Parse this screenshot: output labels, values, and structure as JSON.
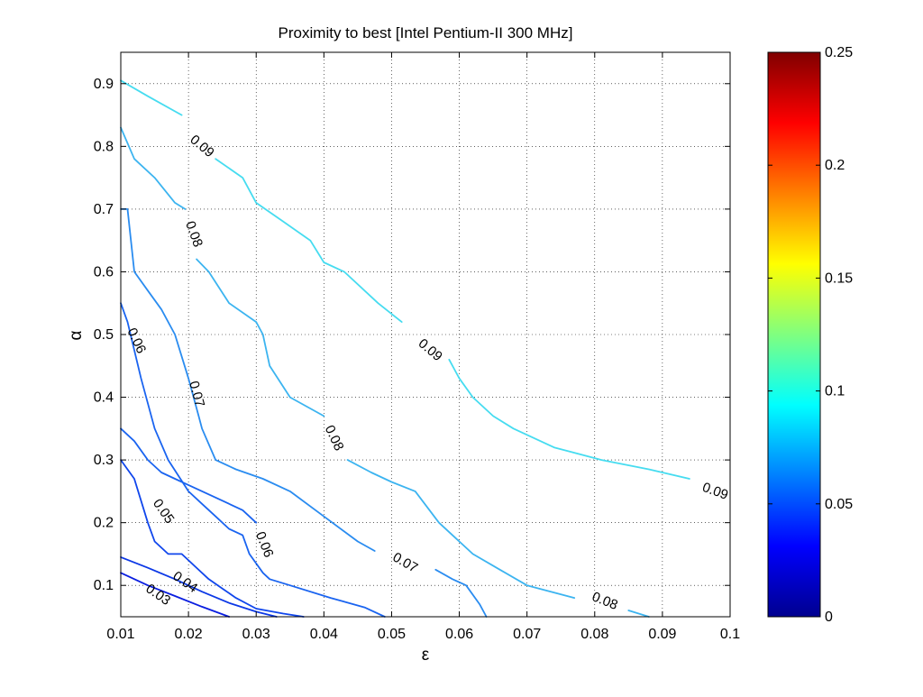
{
  "chart_data": {
    "type": "contour",
    "title": "Proximity to best [Intel Pentium-II 300 MHz]",
    "xlabel": "ε",
    "ylabel": "α",
    "xlim": [
      0.01,
      0.1
    ],
    "ylim": [
      0.05,
      0.95
    ],
    "xticks": [
      "0.01",
      "0.02",
      "0.03",
      "0.04",
      "0.05",
      "0.06",
      "0.07",
      "0.08",
      "0.09",
      "0.1"
    ],
    "yticks": [
      "0.1",
      "0.2",
      "0.3",
      "0.4",
      "0.5",
      "0.6",
      "0.7",
      "0.8",
      "0.9"
    ],
    "grid": true,
    "colormap": "jet",
    "colorbar": {
      "range": [
        0,
        0.25
      ],
      "ticks": [
        "0",
        "0.05",
        "0.1",
        "0.15",
        "0.2",
        "0.25"
      ]
    },
    "contours": [
      {
        "level": "0.03",
        "value": 0.03,
        "color": "#0a1ee0",
        "points": [
          [
            0.01,
            0.12
          ],
          [
            0.014,
            0.1
          ],
          [
            0.018,
            0.083
          ],
          [
            0.022,
            0.066
          ],
          [
            0.026,
            0.05
          ]
        ],
        "labels": [
          {
            "x": 0.0155,
            "y": 0.085,
            "angle": 35
          }
        ]
      },
      {
        "level": "0.04",
        "value": 0.04,
        "color": "#0c38e6",
        "points": [
          [
            0.01,
            0.145
          ],
          [
            0.014,
            0.128
          ],
          [
            0.018,
            0.11
          ],
          [
            0.022,
            0.09
          ],
          [
            0.026,
            0.072
          ],
          [
            0.03,
            0.058
          ],
          [
            0.033,
            0.05
          ]
        ],
        "labels": [
          {
            "x": 0.0195,
            "y": 0.105,
            "angle": 35
          }
        ]
      },
      {
        "level": "0.05",
        "value": 0.05,
        "color": "#1046ec",
        "points": [
          [
            0.01,
            0.3
          ],
          [
            0.012,
            0.27
          ],
          [
            0.014,
            0.2
          ],
          [
            0.015,
            0.17
          ],
          [
            0.017,
            0.15
          ],
          [
            0.019,
            0.15
          ],
          [
            0.021,
            0.13
          ],
          [
            0.023,
            0.11
          ],
          [
            0.025,
            0.095
          ],
          [
            0.027,
            0.08
          ],
          [
            0.03,
            0.063
          ],
          [
            0.034,
            0.055
          ],
          [
            0.037,
            0.05
          ]
        ],
        "labels": [
          {
            "x": 0.0163,
            "y": 0.218,
            "angle": 55
          }
        ]
      },
      {
        "level": "0.06",
        "value": 0.06,
        "color": "#1a64f0",
        "points": [
          [
            0.01,
            0.55
          ],
          [
            0.011,
            0.52
          ],
          [
            0.013,
            0.43
          ],
          [
            0.015,
            0.35
          ],
          [
            0.017,
            0.3
          ],
          [
            0.02,
            0.25
          ],
          [
            0.022,
            0.23
          ],
          [
            0.024,
            0.21
          ],
          [
            0.026,
            0.19
          ],
          [
            0.028,
            0.18
          ],
          [
            0.029,
            0.15
          ],
          [
            0.031,
            0.12
          ],
          [
            0.032,
            0.11
          ],
          [
            0.035,
            0.1
          ],
          [
            0.041,
            0.08
          ],
          [
            0.046,
            0.065
          ],
          [
            0.049,
            0.05
          ]
        ],
        "labels": [
          {
            "x": 0.0123,
            "y": 0.49,
            "angle": 65
          },
          {
            "x": 0.0312,
            "y": 0.165,
            "angle": 68
          }
        ]
      },
      {
        "level": "0.06",
        "value": 0.06,
        "color": "#1a64f0",
        "points": [
          [
            0.01,
            0.35
          ],
          [
            0.012,
            0.33
          ],
          [
            0.014,
            0.3
          ],
          [
            0.016,
            0.28
          ],
          [
            0.018,
            0.27
          ],
          [
            0.02,
            0.26
          ],
          [
            0.024,
            0.24
          ],
          [
            0.028,
            0.22
          ],
          [
            0.03,
            0.2
          ]
        ],
        "labels": []
      },
      {
        "level": "0.07",
        "value": 0.07,
        "color": "#2a8cf0",
        "points": [
          [
            0.01,
            0.7
          ],
          [
            0.011,
            0.7
          ],
          [
            0.012,
            0.6
          ],
          [
            0.014,
            0.57
          ],
          [
            0.016,
            0.54
          ],
          [
            0.018,
            0.5
          ],
          [
            0.02,
            0.43
          ],
          [
            0.0215,
            0.37
          ],
          [
            0.022,
            0.35
          ],
          [
            0.024,
            0.3
          ],
          [
            0.027,
            0.285
          ],
          [
            0.031,
            0.27
          ],
          [
            0.035,
            0.25
          ],
          [
            0.04,
            0.21
          ],
          [
            0.045,
            0.17
          ],
          [
            0.0475,
            0.155
          ]
        ],
        "labels": [
          {
            "x": 0.0212,
            "y": 0.405,
            "angle": 75
          },
          {
            "x": 0.052,
            "y": 0.136,
            "angle": 30
          }
        ]
      },
      {
        "level": "0.07",
        "value": 0.07,
        "color": "#2a8cf0",
        "points": [
          [
            0.0565,
            0.125
          ],
          [
            0.059,
            0.11
          ],
          [
            0.061,
            0.1
          ],
          [
            0.063,
            0.07
          ],
          [
            0.064,
            0.05
          ]
        ],
        "labels": []
      },
      {
        "level": "0.08",
        "value": 0.08,
        "color": "#3cb4f0",
        "points": [
          [
            0.01,
            0.83
          ],
          [
            0.012,
            0.78
          ],
          [
            0.015,
            0.75
          ],
          [
            0.018,
            0.71
          ],
          [
            0.0195,
            0.7
          ]
        ],
        "labels": [
          {
            "x": 0.0208,
            "y": 0.66,
            "angle": 70
          }
        ]
      },
      {
        "level": "0.08",
        "value": 0.08,
        "color": "#3cb4f0",
        "points": [
          [
            0.0212,
            0.62
          ],
          [
            0.023,
            0.6
          ],
          [
            0.026,
            0.55
          ],
          [
            0.03,
            0.52
          ],
          [
            0.031,
            0.5
          ],
          [
            0.032,
            0.45
          ],
          [
            0.035,
            0.4
          ],
          [
            0.04,
            0.37
          ]
        ],
        "labels": [
          {
            "x": 0.0415,
            "y": 0.335,
            "angle": 65
          }
        ]
      },
      {
        "level": "0.08",
        "value": 0.08,
        "color": "#3cb4f0",
        "points": [
          [
            0.0435,
            0.3
          ],
          [
            0.047,
            0.28
          ],
          [
            0.05,
            0.265
          ],
          [
            0.0535,
            0.25
          ],
          [
            0.057,
            0.2
          ],
          [
            0.062,
            0.15
          ],
          [
            0.066,
            0.125
          ],
          [
            0.07,
            0.1
          ],
          [
            0.077,
            0.08
          ]
        ],
        "labels": [
          {
            "x": 0.0815,
            "y": 0.075,
            "angle": 22
          }
        ]
      },
      {
        "level": "0.08",
        "value": 0.08,
        "color": "#3cb4f0",
        "points": [
          [
            0.085,
            0.06
          ],
          [
            0.088,
            0.05
          ]
        ],
        "labels": []
      },
      {
        "level": "0.09",
        "value": 0.09,
        "color": "#46dcf0",
        "points": [
          [
            0.01,
            0.905
          ],
          [
            0.014,
            0.88
          ],
          [
            0.019,
            0.85
          ]
        ],
        "labels": [
          {
            "x": 0.022,
            "y": 0.8,
            "angle": 40
          }
        ]
      },
      {
        "level": "0.09",
        "value": 0.09,
        "color": "#46dcf0",
        "points": [
          [
            0.024,
            0.78
          ],
          [
            0.028,
            0.75
          ],
          [
            0.03,
            0.71
          ],
          [
            0.034,
            0.68
          ],
          [
            0.038,
            0.65
          ],
          [
            0.04,
            0.615
          ],
          [
            0.043,
            0.6
          ],
          [
            0.048,
            0.55
          ],
          [
            0.0515,
            0.52
          ]
        ],
        "labels": [
          {
            "x": 0.0557,
            "y": 0.475,
            "angle": 40
          }
        ]
      },
      {
        "level": "0.09",
        "value": 0.09,
        "color": "#46dcf0",
        "points": [
          [
            0.0585,
            0.46
          ],
          [
            0.06,
            0.43
          ],
          [
            0.062,
            0.4
          ],
          [
            0.065,
            0.37
          ],
          [
            0.068,
            0.35
          ],
          [
            0.074,
            0.32
          ],
          [
            0.081,
            0.3
          ],
          [
            0.088,
            0.285
          ],
          [
            0.094,
            0.27
          ]
        ],
        "labels": [
          {
            "x": 0.0978,
            "y": 0.25,
            "angle": 20
          }
        ]
      }
    ]
  }
}
